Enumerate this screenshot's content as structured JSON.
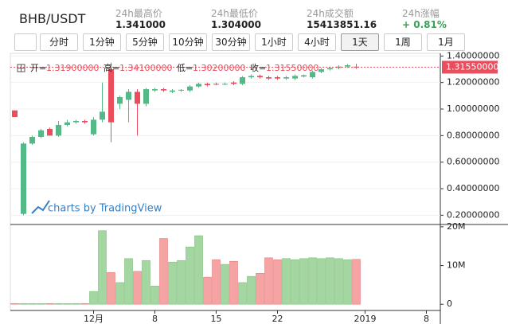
{
  "header": {
    "pair": "BHB/USDT",
    "stats": [
      {
        "label": "24h最高价",
        "value": "1.341000"
      },
      {
        "label": "24h最低价",
        "value": "1.304000"
      },
      {
        "label": "24h成交额",
        "value": "15413851.16"
      },
      {
        "label": "24h涨幅",
        "value": "+ 0.81%"
      }
    ]
  },
  "toolbar": {
    "buttons": [
      "分时",
      "1分钟",
      "5分钟",
      "10分钟",
      "30分钟",
      "1小时",
      "4小时",
      "1天",
      "1周",
      "1月"
    ],
    "active": "1天"
  },
  "chart_data": {
    "type": "candlestick",
    "ohlc_legend": [
      {
        "label": "开=",
        "value": "1.31900000"
      },
      {
        "label": "高=",
        "value": "1.34100000"
      },
      {
        "label": "低=",
        "value": "1.30200000"
      },
      {
        "label": "收=",
        "value": "1.31550000"
      }
    ],
    "watermark": "charts by TradingView",
    "categories": [
      null,
      null,
      null,
      null,
      null,
      null,
      null,
      null,
      null,
      "12月",
      null,
      null,
      null,
      null,
      null,
      null,
      "8",
      null,
      null,
      null,
      null,
      null,
      null,
      "15",
      null,
      null,
      null,
      null,
      null,
      null,
      "22",
      null,
      null,
      null,
      null,
      null,
      null,
      null,
      null,
      null,
      "2019",
      null,
      null,
      null,
      null,
      null,
      null,
      "8"
    ],
    "open": [
      0.99,
      0.21,
      0.74,
      0.79,
      0.85,
      0.8,
      0.88,
      0.9,
      0.91,
      0.81,
      0.92,
      1.3,
      1.04,
      1.07,
      1.13,
      1.04,
      1.14,
      1.15,
      1.13,
      1.14,
      1.14,
      1.17,
      1.19,
      1.19,
      1.185,
      1.2,
      1.19,
      1.24,
      1.25,
      1.24,
      1.24,
      1.23,
      1.23,
      1.245,
      1.24,
      1.28,
      1.3,
      1.31,
      1.32,
      1.319,
      null,
      null,
      null,
      null,
      null,
      null,
      null,
      null
    ],
    "high": [
      0.99,
      0.75,
      0.8,
      0.85,
      0.86,
      0.91,
      0.92,
      0.92,
      0.92,
      0.94,
      1.2,
      1.35,
      1.1,
      1.15,
      1.15,
      1.16,
      1.16,
      1.16,
      1.15,
      1.15,
      1.18,
      1.2,
      1.2,
      1.2,
      1.2,
      1.21,
      1.25,
      1.26,
      1.26,
      1.25,
      1.25,
      1.25,
      1.26,
      1.26,
      1.29,
      1.31,
      1.32,
      1.33,
      1.34,
      1.341,
      null,
      null,
      null,
      null,
      null,
      null,
      null,
      null
    ],
    "low": [
      0.94,
      0.2,
      0.73,
      0.78,
      0.8,
      0.79,
      0.87,
      0.89,
      0.89,
      0.8,
      0.9,
      0.75,
      1.0,
      0.9,
      0.8,
      1.02,
      1.13,
      1.13,
      1.12,
      1.13,
      1.13,
      1.16,
      1.17,
      1.18,
      1.18,
      1.18,
      1.18,
      1.23,
      1.23,
      1.22,
      1.22,
      1.22,
      1.22,
      1.24,
      1.23,
      1.27,
      1.29,
      1.3,
      1.31,
      1.302,
      null,
      null,
      null,
      null,
      null,
      null,
      null,
      null
    ],
    "close": [
      0.94,
      0.74,
      0.79,
      0.84,
      0.8,
      0.88,
      0.9,
      0.91,
      0.9,
      0.92,
      0.98,
      0.9,
      1.09,
      1.13,
      1.04,
      1.15,
      1.15,
      1.14,
      1.14,
      1.145,
      1.17,
      1.19,
      1.18,
      1.185,
      1.19,
      1.19,
      1.24,
      1.25,
      1.24,
      1.23,
      1.23,
      1.24,
      1.25,
      1.255,
      1.28,
      1.3,
      1.31,
      1.32,
      1.33,
      1.3155,
      null,
      null,
      null,
      null,
      null,
      null,
      null,
      null
    ],
    "volume": [
      200000,
      200000,
      200000,
      200000,
      200000,
      200000,
      200000,
      200000,
      200000,
      3300000,
      19000000,
      8200000,
      5600000,
      11800000,
      8500000,
      11300000,
      4700000,
      17000000,
      10900000,
      11300000,
      14800000,
      17700000,
      7000000,
      11500000,
      10300000,
      11100000,
      5600000,
      7200000,
      8000000,
      12000000,
      11500000,
      11800000,
      11500000,
      11800000,
      12000000,
      11800000,
      12000000,
      11800000,
      11500000,
      11600000,
      null,
      null,
      null,
      null,
      null,
      null,
      null,
      null
    ],
    "up_color": "#53b987",
    "down_color": "#eb4d5c",
    "volume_up_color": "#a3d6a0",
    "volume_down_color": "#f6a3a3",
    "ylim": [
      0.13,
      1.42
    ],
    "yticks": [
      {
        "value": 0.2,
        "label": "0.20000000"
      },
      {
        "value": 0.4,
        "label": "0.40000000"
      },
      {
        "value": 0.6,
        "label": "0.60000000"
      },
      {
        "value": 0.8,
        "label": "0.80000000"
      },
      {
        "value": 1.0,
        "label": "1.00000000"
      },
      {
        "value": 1.2,
        "label": "1.20000000"
      },
      {
        "value": 1.4,
        "label": "1.40000000"
      }
    ],
    "last_price": {
      "value": 1.3155,
      "label": "1.31550000"
    },
    "volume_ylim": [
      -1600000,
      20600000
    ],
    "volume_yticks": [
      0,
      {
        "value": 10000000,
        "label": "10M"
      },
      {
        "value": 20000000,
        "label": "20M"
      }
    ],
    "grid": true
  }
}
